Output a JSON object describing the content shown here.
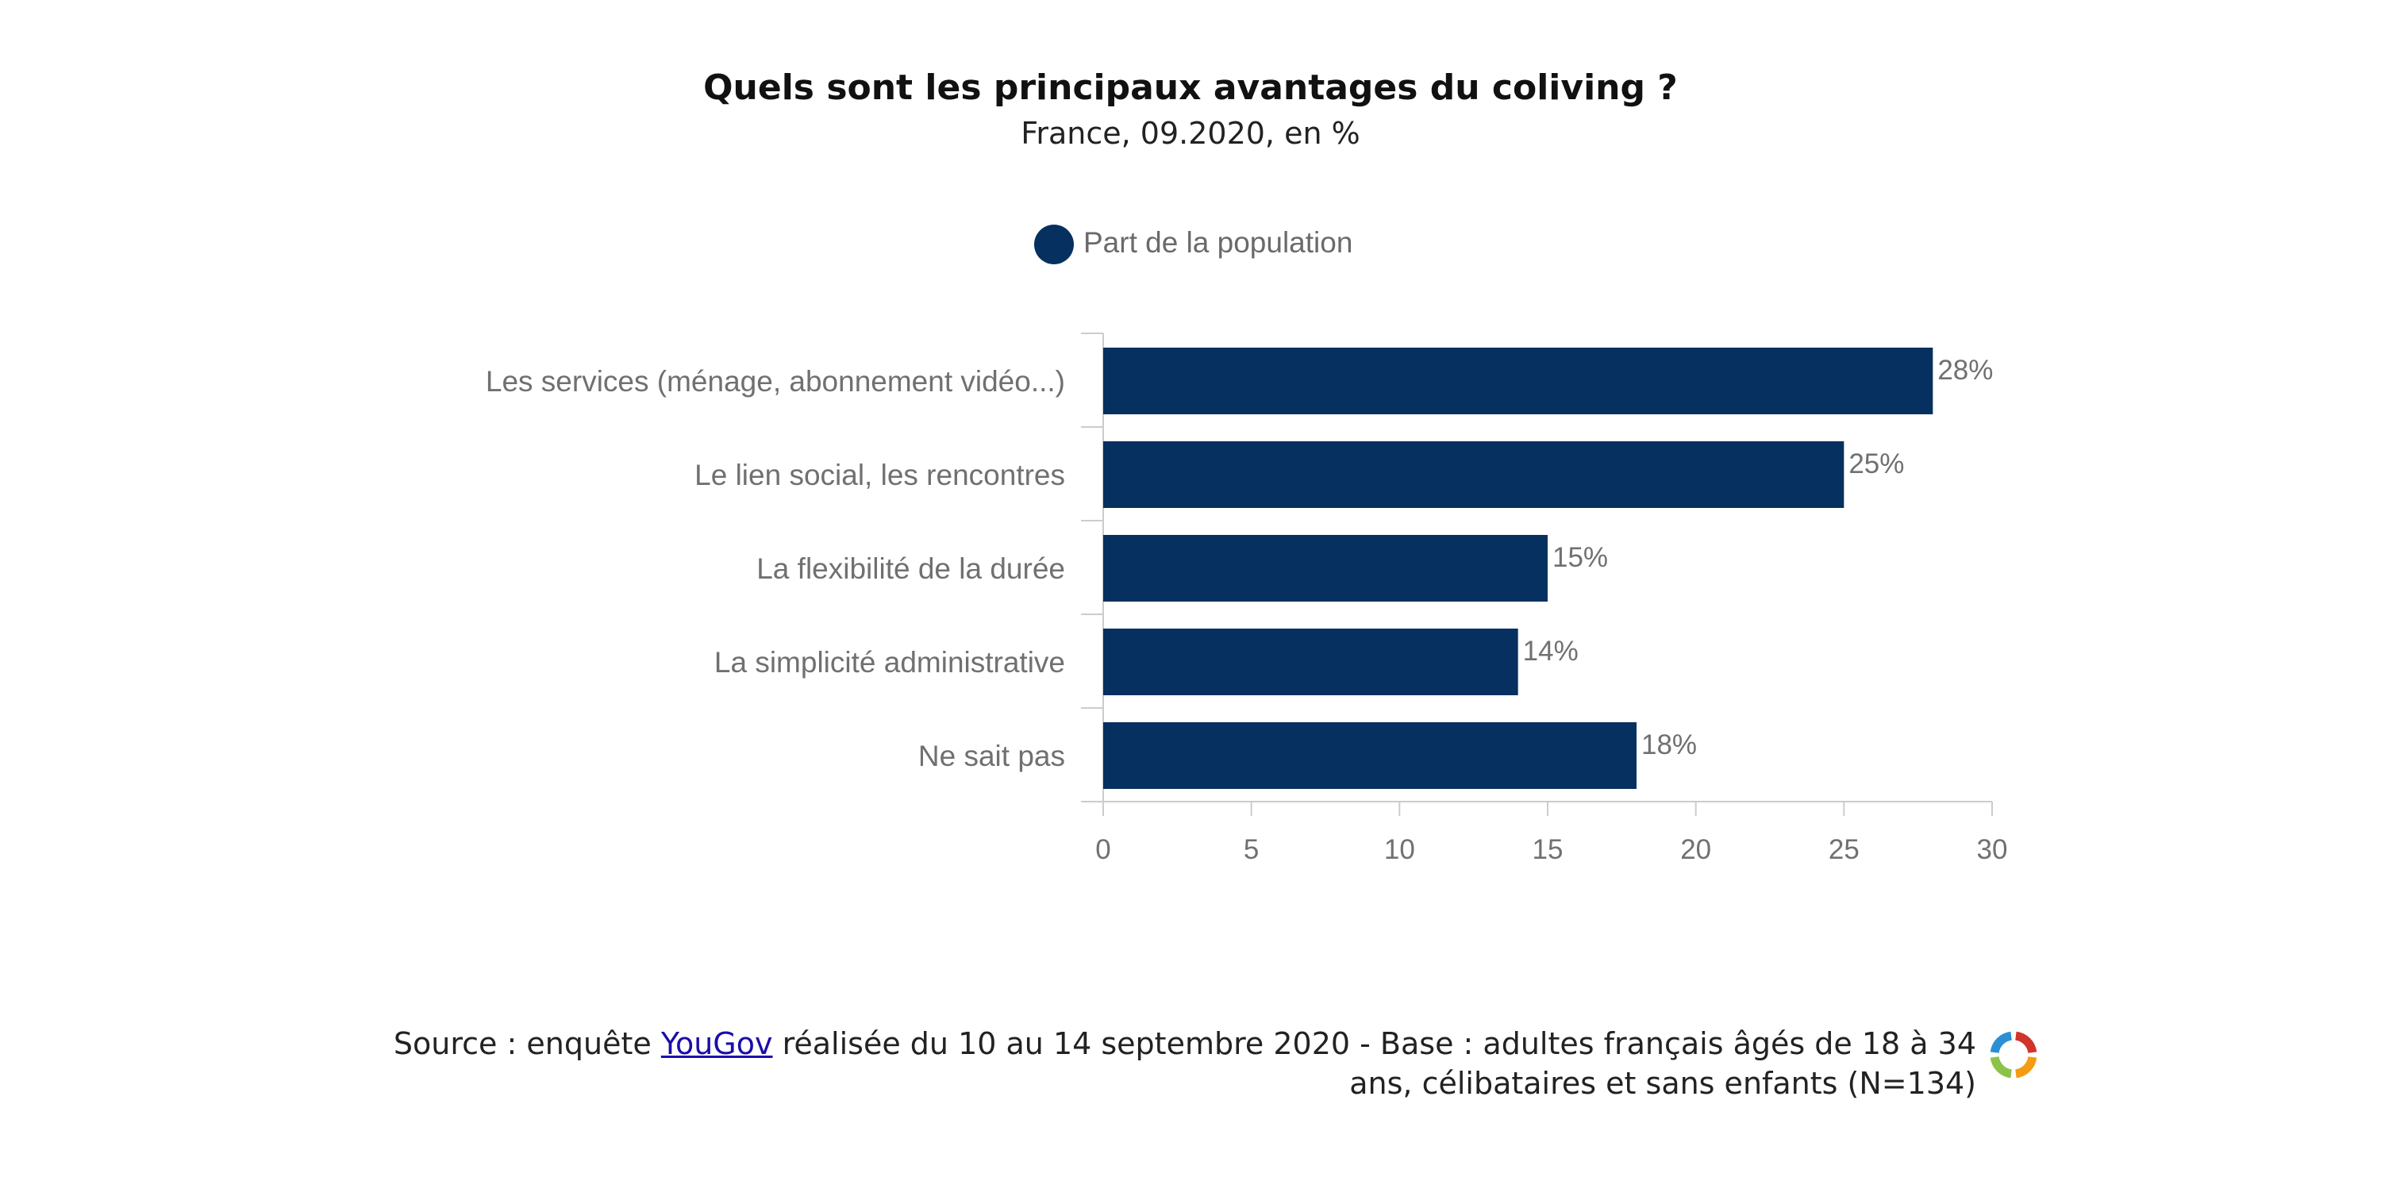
{
  "chart_data": {
    "type": "bar",
    "orientation": "horizontal",
    "title": "Quels sont les principaux avantages du coliving ?",
    "subtitle": "France, 09.2020, en %",
    "categories": [
      "Les services (ménage, abonnement vidéo...)",
      "Le lien social, les rencontres",
      "La flexibilité de la durée",
      "La simplicité administrative",
      "Ne sait pas"
    ],
    "series": [
      {
        "name": "Part de la population",
        "values": [
          28,
          25,
          15,
          14,
          18
        ],
        "data_labels": [
          "28%",
          "25%",
          "15%",
          "14%",
          "18%"
        ],
        "color": "#06305f"
      }
    ],
    "xlim": [
      0,
      30
    ],
    "xticks": [
      0,
      5,
      10,
      15,
      20,
      25,
      30
    ],
    "legend_position": "top-center",
    "grid": false
  },
  "source": {
    "prefix": "Source : enquête ",
    "link_text": "YouGov",
    "suffix": " réalisée du 10 au 14 septembre 2020 - Base : adultes français âgés de 18 à 34 ans, célibataires et sans enfants (N=134)"
  },
  "colors": {
    "bar": "#06305f",
    "axis": "#cccccc",
    "logo": [
      "#d0342c",
      "#f39c12",
      "#8bc34a",
      "#2b8fd6"
    ]
  }
}
